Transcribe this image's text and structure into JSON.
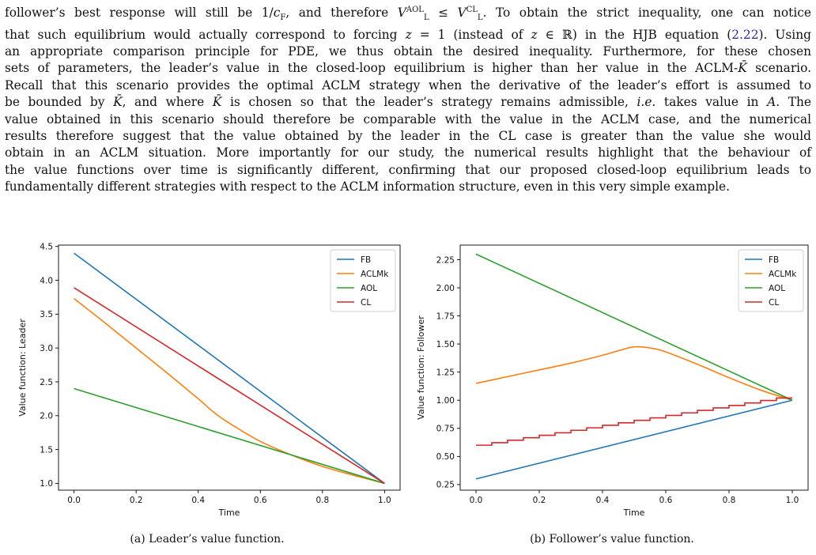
{
  "paragraph": {
    "lines": [
      {
        "segments": [
          {
            "t": "follower’s best response will still be 1/"
          },
          {
            "t": "c",
            "i": true
          },
          {
            "t": "F",
            "sub": true
          },
          {
            "t": ", and therefore "
          },
          {
            "t": "V",
            "i": true
          },
          {
            "t": "AOL",
            "sup": true
          },
          {
            "t": "L",
            "sub": true
          },
          {
            "t": " ≤ "
          },
          {
            "t": "V",
            "i": true
          },
          {
            "t": "CL",
            "sup": true
          },
          {
            "t": "L",
            "sub": true
          },
          {
            "t": ". To obtain the strict inequality, one can notice"
          }
        ]
      },
      {
        "segments": [
          {
            "t": "that such equilibrium would actually correspond to forcing "
          },
          {
            "t": "z",
            "i": true
          },
          {
            "t": " = 1 (instead of "
          },
          {
            "t": "z",
            "i": true
          },
          {
            "t": " ∈ ℝ) in the HJB equation ("
          },
          {
            "t": "2.22",
            "link": true
          },
          {
            "t": "). Using"
          }
        ]
      },
      {
        "segments": [
          {
            "t": "an appropriate comparison principle for PDE, we thus obtain the desired inequality. Furthermore, for these chosen"
          }
        ]
      },
      {
        "segments": [
          {
            "t": "sets of parameters, the leader’s value in the closed-loop equilibrium is higher than her value in the ACLM-"
          },
          {
            "t": "K̄",
            "i": true
          },
          {
            "t": " scenario."
          }
        ]
      },
      {
        "segments": [
          {
            "t": "Recall that this scenario provides the optimal ACLM strategy when the derivative of the leader’s effort is assumed to"
          }
        ]
      },
      {
        "segments": [
          {
            "t": "be bounded by "
          },
          {
            "t": "K̄",
            "i": true
          },
          {
            "t": ", and where "
          },
          {
            "t": "K̄",
            "i": true
          },
          {
            "t": " is chosen so that the leader’s strategy remains admissible, "
          },
          {
            "t": "i.e.",
            "i": true
          },
          {
            "t": " takes value in "
          },
          {
            "t": "A",
            "i": true
          },
          {
            "t": ". The"
          }
        ]
      },
      {
        "segments": [
          {
            "t": "value obtained in this scenario should therefore be comparable with the value in the ACLM case, and the numerical"
          }
        ]
      },
      {
        "segments": [
          {
            "t": "results therefore suggest that the value obtained by the leader in the CL case is greater than the value she would"
          }
        ]
      },
      {
        "segments": [
          {
            "t": "obtain in an ACLM situation. More importantly for our study, the numerical results highlight that the behaviour of"
          }
        ]
      },
      {
        "segments": [
          {
            "t": "the value functions over time is significantly different, confirming that our proposed closed-loop equilibrium leads to"
          }
        ]
      },
      {
        "segments": [
          {
            "t": "fundamentally different strategies with respect to the ACLM information structure, even in this very simple example."
          }
        ]
      }
    ]
  },
  "colors": {
    "FB": "#1f77b4",
    "ACLMk": "#ff7f0e",
    "AOL": "#2ca02c",
    "CL": "#d62728"
  },
  "chart_data": [
    {
      "type": "line",
      "caption": "(a) Leader’s value function.",
      "xlabel": "Time",
      "ylabel": "Value function: Leader",
      "xlim": [
        -0.05,
        1.05
      ],
      "ylim": [
        0.9,
        4.52
      ],
      "xticks": [
        0.0,
        0.2,
        0.4,
        0.6,
        0.8,
        1.0
      ],
      "xtick_labels": [
        "0.0",
        "0.2",
        "0.4",
        "0.6",
        "0.8",
        "1.0"
      ],
      "yticks": [
        1.0,
        1.5,
        2.0,
        2.5,
        3.0,
        3.5,
        4.0,
        4.5
      ],
      "ytick_labels": [
        "1.0",
        "1.5",
        "2.0",
        "2.5",
        "3.0",
        "3.5",
        "4.0",
        "4.5"
      ],
      "grid": false,
      "legend": "top-right",
      "series": [
        {
          "name": "FB",
          "x": [
            0,
            1
          ],
          "y": [
            4.4,
            1.0
          ]
        },
        {
          "name": "ACLMk",
          "x": [
            0,
            0.1,
            0.2,
            0.3,
            0.4,
            0.45,
            0.5,
            0.6,
            0.7,
            0.8,
            0.9,
            1.0
          ],
          "y": [
            3.73,
            3.37,
            3.0,
            2.63,
            2.25,
            2.05,
            1.89,
            1.62,
            1.42,
            1.25,
            1.12,
            1.0
          ]
        },
        {
          "name": "AOL",
          "x": [
            0,
            1
          ],
          "y": [
            2.4,
            1.0
          ]
        },
        {
          "name": "CL",
          "x": [
            0,
            1
          ],
          "y": [
            3.89,
            1.0
          ]
        }
      ]
    },
    {
      "type": "line",
      "caption": "(b) Follower’s value function.",
      "xlabel": "Time",
      "ylabel": "Value function: Follower",
      "xlim": [
        -0.05,
        1.05
      ],
      "ylim": [
        0.2,
        2.38
      ],
      "xticks": [
        0.0,
        0.2,
        0.4,
        0.6,
        0.8,
        1.0
      ],
      "xtick_labels": [
        "0.0",
        "0.2",
        "0.4",
        "0.6",
        "0.8",
        "1.0"
      ],
      "yticks": [
        0.25,
        0.5,
        0.75,
        1.0,
        1.25,
        1.5,
        1.75,
        2.0,
        2.25
      ],
      "ytick_labels": [
        "0.25",
        "0.50",
        "0.75",
        "1.00",
        "1.25",
        "1.50",
        "1.75",
        "2.00",
        "2.25"
      ],
      "grid": false,
      "legend": "top-right",
      "series": [
        {
          "name": "FB",
          "x": [
            0,
            1
          ],
          "y": [
            0.3,
            1.0
          ]
        },
        {
          "name": "ACLMk",
          "x": [
            0,
            0.1,
            0.2,
            0.3,
            0.4,
            0.45,
            0.5,
            0.55,
            0.6,
            0.7,
            0.8,
            0.9,
            1.0
          ],
          "y": [
            1.15,
            1.21,
            1.27,
            1.33,
            1.4,
            1.44,
            1.475,
            1.465,
            1.43,
            1.32,
            1.2,
            1.09,
            1.0
          ]
        },
        {
          "name": "AOL",
          "x": [
            0,
            1
          ],
          "y": [
            2.3,
            1.0
          ]
        },
        {
          "name": "CL",
          "x": [
            0,
            1
          ],
          "y": [
            0.6,
            1.02
          ],
          "steps": 20
        }
      ]
    }
  ]
}
